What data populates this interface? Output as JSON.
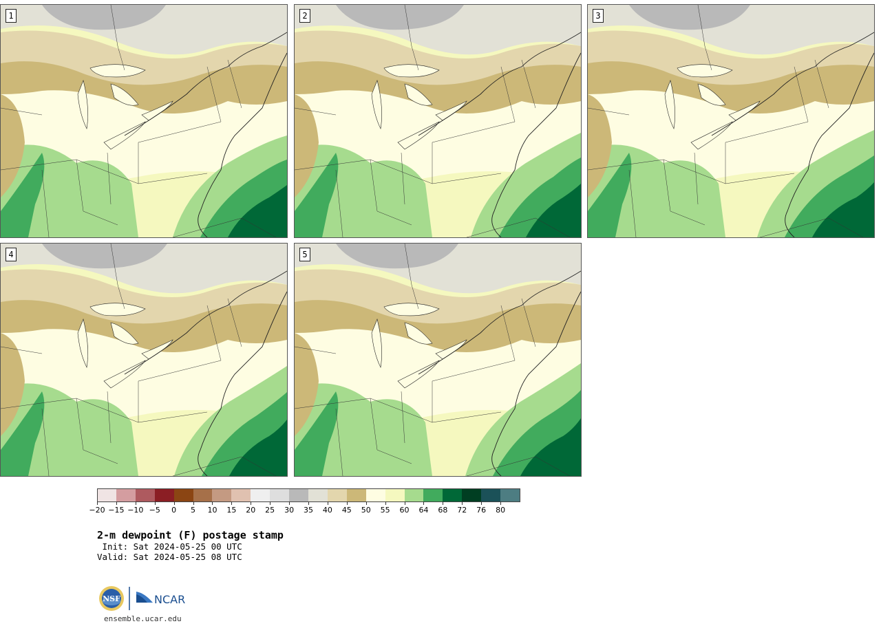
{
  "panels": [
    {
      "label": "1"
    },
    {
      "label": "2"
    },
    {
      "label": "3"
    },
    {
      "label": "4"
    },
    {
      "label": "5"
    }
  ],
  "colorbar": {
    "colors": [
      "#f0e4e4",
      "#d49da0",
      "#ae5a5f",
      "#8b1e24",
      "#8b4513",
      "#a67049",
      "#c49a82",
      "#e0c1b0",
      "#efefef",
      "#dedede",
      "#b9b9b9",
      "#e2e1d6",
      "#e3d6ad",
      "#ccb878",
      "#fefde2",
      "#f5f8bf",
      "#a6db8e",
      "#41ab5d",
      "#006837",
      "#003e22",
      "#1b5158",
      "#4d7d82"
    ],
    "ticks": [
      "−20",
      "−15",
      "−10",
      "−5",
      "0",
      "5",
      "10",
      "15",
      "20",
      "25",
      "30",
      "35",
      "40",
      "45",
      "50",
      "55",
      "60",
      "64",
      "68",
      "72",
      "76",
      "80"
    ]
  },
  "title": "2-m dewpoint (F) postage stamp",
  "init": " Init: Sat 2024-05-25 00 UTC",
  "valid": "Valid: Sat 2024-05-25 08 UTC",
  "logo": {
    "nsf": "NSF",
    "ncar": "NCAR"
  },
  "url": "ensemble.ucar.edu"
}
